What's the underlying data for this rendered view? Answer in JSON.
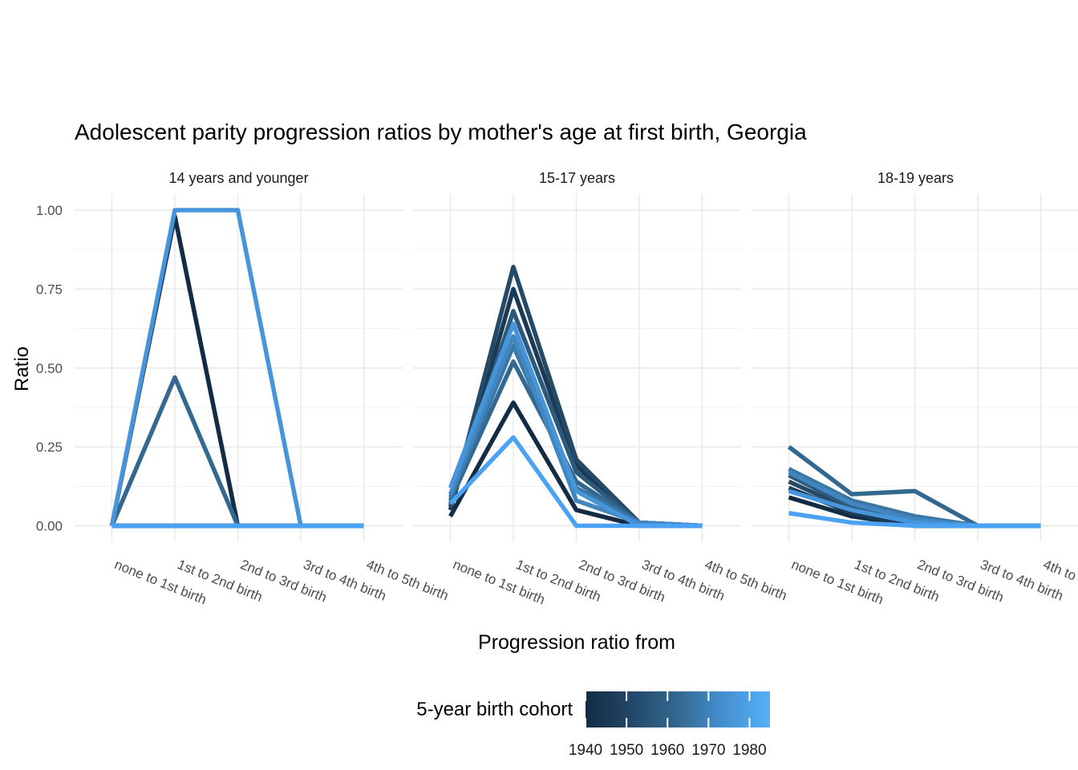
{
  "chart_data": {
    "type": "line",
    "title": "Adolescent parity progression ratios by mother's age at first birth,  Georgia",
    "xlabel": "Progression ratio from",
    "ylabel": "Ratio",
    "categories": [
      "none to 1st birth",
      "1st to 2nd birth",
      "2nd to 3rd birth",
      "3rd to 4th birth",
      "4th to 5th birth"
    ],
    "y_ticks": [
      0,
      0.25,
      0.5,
      0.75,
      1
    ],
    "y_tick_labels": [
      "0.00",
      "0.25",
      "0.50",
      "0.75",
      "1.00"
    ],
    "y_minor": [
      0.125,
      0.375,
      0.625,
      0.875
    ],
    "ylim": [
      -0.05,
      1.05
    ],
    "grid": true,
    "legend": {
      "title": "5-year birth cohort",
      "position": "bottom",
      "tick_labels": [
        "1940",
        "1950",
        "1960",
        "1970",
        "1980"
      ],
      "tick_years": [
        1940,
        1950,
        1960,
        1970,
        1980
      ],
      "year_range": [
        1940,
        1985
      ],
      "gradient": [
        "#132B43",
        "#234869",
        "#336890",
        "#4490D2",
        "#56B1F7"
      ]
    },
    "cohorts": [
      {
        "year": 1940,
        "color": "#132B43"
      },
      {
        "year": 1945,
        "color": "#1B3A55"
      },
      {
        "year": 1950,
        "color": "#244A68"
      },
      {
        "year": 1955,
        "color": "#2C597C"
      },
      {
        "year": 1960,
        "color": "#336890"
      },
      {
        "year": 1965,
        "color": "#3A77A6"
      },
      {
        "year": 1970,
        "color": "#4186BE"
      },
      {
        "year": 1975,
        "color": "#4694D9"
      },
      {
        "year": 1980,
        "color": "#4CA2F2"
      }
    ],
    "panels": [
      {
        "label": "14 years and younger",
        "series": [
          {
            "cohort": 1940,
            "values": [
              0,
              0.98,
              0,
              0,
              0
            ]
          },
          {
            "cohort": 1945,
            "values": [
              0,
              0,
              0,
              0,
              0
            ]
          },
          {
            "cohort": 1950,
            "values": [
              0,
              0,
              0,
              0,
              0
            ]
          },
          {
            "cohort": 1955,
            "values": [
              0,
              0,
              0,
              0,
              0
            ]
          },
          {
            "cohort": 1960,
            "values": [
              0,
              0.47,
              0,
              0,
              0
            ]
          },
          {
            "cohort": 1965,
            "values": [
              0,
              0,
              0,
              0,
              0
            ]
          },
          {
            "cohort": 1970,
            "values": [
              0,
              0,
              0,
              0,
              0
            ]
          },
          {
            "cohort": 1975,
            "values": [
              0,
              1.0,
              1.0,
              0,
              0
            ]
          },
          {
            "cohort": 1980,
            "values": [
              0,
              0,
              0,
              0,
              0
            ]
          }
        ]
      },
      {
        "label": "15-17 years",
        "series": [
          {
            "cohort": 1940,
            "values": [
              0.03,
              0.39,
              0.05,
              0,
              0
            ]
          },
          {
            "cohort": 1945,
            "values": [
              0.05,
              0.75,
              0.19,
              0.01,
              0
            ]
          },
          {
            "cohort": 1950,
            "values": [
              0.06,
              0.82,
              0.21,
              0.01,
              0
            ]
          },
          {
            "cohort": 1955,
            "values": [
              0.07,
              0.68,
              0.17,
              0.01,
              0
            ]
          },
          {
            "cohort": 1960,
            "values": [
              0.08,
              0.52,
              0.14,
              0.01,
              0
            ]
          },
          {
            "cohort": 1965,
            "values": [
              0.09,
              0.57,
              0.12,
              0.01,
              0
            ]
          },
          {
            "cohort": 1970,
            "values": [
              0.1,
              0.6,
              0.08,
              0.01,
              0
            ]
          },
          {
            "cohort": 1975,
            "values": [
              0.12,
              0.64,
              0.11,
              0,
              0
            ]
          },
          {
            "cohort": 1980,
            "values": [
              0.07,
              0.28,
              0,
              0,
              0
            ]
          }
        ]
      },
      {
        "label": "18-19 years",
        "series": [
          {
            "cohort": 1940,
            "values": [
              0.09,
              0.03,
              0,
              0,
              0
            ]
          },
          {
            "cohort": 1945,
            "values": [
              0.12,
              0.04,
              0,
              0,
              0
            ]
          },
          {
            "cohort": 1950,
            "values": [
              0.14,
              0.05,
              0.01,
              0,
              0
            ]
          },
          {
            "cohort": 1955,
            "values": [
              0.16,
              0.06,
              0.02,
              0,
              0
            ]
          },
          {
            "cohort": 1960,
            "values": [
              0.25,
              0.1,
              0.11,
              0,
              0
            ]
          },
          {
            "cohort": 1965,
            "values": [
              0.18,
              0.08,
              0.03,
              0,
              0
            ]
          },
          {
            "cohort": 1970,
            "values": [
              0.17,
              0.07,
              0.02,
              0,
              0
            ]
          },
          {
            "cohort": 1975,
            "values": [
              0.11,
              0.05,
              0.01,
              0,
              0
            ]
          },
          {
            "cohort": 1980,
            "values": [
              0.04,
              0.01,
              0,
              0,
              0
            ]
          }
        ]
      }
    ]
  }
}
